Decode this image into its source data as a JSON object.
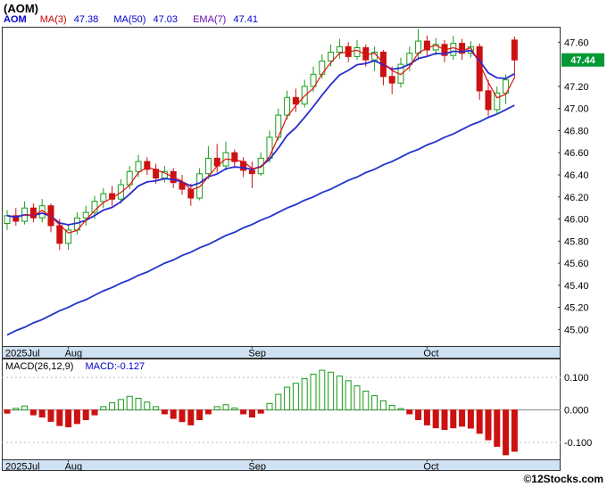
{
  "title": "(AOM)",
  "legend": {
    "symbol": "AOM",
    "symbol_color": "#0000cc",
    "items": [
      {
        "label": "MA(3)",
        "value": "47.38",
        "label_color": "#cc0000",
        "value_color": "#0000cc"
      },
      {
        "label": "MA(50)",
        "value": "47.03",
        "label_color": "#0000cc",
        "value_color": "#0000cc"
      },
      {
        "label": "EMA(7)",
        "value": "47.41",
        "label_color": "#6a0dad",
        "value_color": "#0000cc"
      }
    ]
  },
  "price_axis": {
    "ticks": [
      47.6,
      47.2,
      47.0,
      46.8,
      46.6,
      46.4,
      46.2,
      46.0,
      45.8,
      45.6,
      45.4,
      45.2,
      45.0
    ],
    "last_price": "47.44"
  },
  "x_axis": {
    "months": [
      {
        "label": "2025Jul",
        "index": 0
      },
      {
        "label": "Aug",
        "index": 7
      },
      {
        "label": "Sep",
        "index": 28
      },
      {
        "label": "Oct",
        "index": 48
      }
    ]
  },
  "macd_panel": {
    "label": "MACD(26,12,9)",
    "value_label": "MACD:-0.127",
    "value_color": "#0000cc",
    "axis_labels": [
      "0.100",
      "0.000",
      "-0.100"
    ],
    "axis_values": [
      0.1,
      0,
      -0.1
    ]
  },
  "footer": {
    "copyright": "©12Stocks.com"
  },
  "colors": {
    "up": "#1a9a1a",
    "down": "#cc1111",
    "ma3": "#e01010",
    "ema7": "#2a2ad0",
    "ma50": "#2233cc",
    "last_price_bg": "#009933",
    "last_price_text": "#ffffff",
    "band_bg": "#cfe2f3",
    "border": "#333333",
    "zero_line": "#888888",
    "grid_dotted": "#bbbbbb",
    "axis_text": "#000000"
  },
  "chart_data": {
    "type": "candlestick",
    "symbol": "AOM",
    "title": "(AOM)",
    "ylim": [
      44.85,
      47.74
    ],
    "x_tick_labels": [
      "2025Jul",
      "Aug",
      "Sep",
      "Oct"
    ],
    "candles": [
      [
        45.96,
        46.08,
        45.9,
        46.03
      ],
      [
        46.03,
        46.1,
        45.94,
        45.98
      ],
      [
        45.98,
        46.16,
        45.95,
        46.1
      ],
      [
        46.1,
        46.14,
        45.97,
        46.01
      ],
      [
        46.01,
        46.18,
        45.97,
        46.12
      ],
      [
        46.12,
        46.14,
        45.88,
        45.94
      ],
      [
        45.94,
        46.0,
        45.72,
        45.78
      ],
      [
        45.78,
        45.95,
        45.72,
        45.9
      ],
      [
        45.9,
        46.06,
        45.86,
        46.01
      ],
      [
        46.01,
        46.12,
        45.94,
        46.06
      ],
      [
        46.06,
        46.21,
        46.0,
        46.16
      ],
      [
        46.16,
        46.28,
        46.1,
        46.23
      ],
      [
        46.23,
        46.3,
        46.12,
        46.18
      ],
      [
        46.18,
        46.36,
        46.14,
        46.31
      ],
      [
        46.31,
        46.48,
        46.27,
        46.43
      ],
      [
        46.43,
        46.58,
        46.38,
        46.52
      ],
      [
        46.52,
        46.56,
        46.4,
        46.45
      ],
      [
        46.45,
        46.5,
        46.32,
        46.37
      ],
      [
        46.37,
        46.48,
        46.33,
        46.43
      ],
      [
        46.43,
        46.46,
        46.28,
        46.33
      ],
      [
        46.33,
        46.4,
        46.22,
        46.27
      ],
      [
        46.27,
        46.32,
        46.12,
        46.19
      ],
      [
        46.19,
        46.46,
        46.17,
        46.41
      ],
      [
        46.41,
        46.66,
        46.36,
        46.55
      ],
      [
        46.55,
        46.68,
        46.42,
        46.48
      ],
      [
        46.48,
        46.7,
        46.44,
        46.6
      ],
      [
        46.6,
        46.63,
        46.46,
        46.52
      ],
      [
        46.52,
        46.56,
        46.38,
        46.44
      ],
      [
        46.44,
        46.52,
        46.28,
        46.41
      ],
      [
        46.41,
        46.6,
        46.39,
        46.55
      ],
      [
        46.55,
        46.8,
        46.51,
        46.74
      ],
      [
        46.74,
        47.0,
        46.71,
        46.94
      ],
      [
        46.94,
        47.16,
        46.9,
        47.1
      ],
      [
        47.1,
        47.18,
        46.97,
        47.04
      ],
      [
        47.04,
        47.26,
        47.01,
        47.2
      ],
      [
        47.2,
        47.38,
        47.15,
        47.31
      ],
      [
        47.31,
        47.49,
        47.27,
        47.43
      ],
      [
        47.43,
        47.58,
        47.38,
        47.51
      ],
      [
        47.51,
        47.63,
        47.45,
        47.56
      ],
      [
        47.56,
        47.6,
        47.42,
        47.47
      ],
      [
        47.47,
        47.62,
        47.44,
        47.55
      ],
      [
        47.55,
        47.58,
        47.38,
        47.44
      ],
      [
        47.44,
        47.56,
        47.34,
        47.51
      ],
      [
        47.51,
        47.53,
        47.21,
        47.29
      ],
      [
        47.29,
        47.38,
        47.13,
        47.23
      ],
      [
        47.23,
        47.46,
        47.19,
        47.4
      ],
      [
        47.4,
        47.56,
        47.34,
        47.5
      ],
      [
        47.5,
        47.72,
        47.44,
        47.61
      ],
      [
        47.61,
        47.66,
        47.47,
        47.53
      ],
      [
        47.53,
        47.64,
        47.48,
        47.58
      ],
      [
        47.58,
        47.62,
        47.42,
        47.48
      ],
      [
        47.48,
        47.66,
        47.44,
        47.59
      ],
      [
        47.59,
        47.63,
        47.44,
        47.5
      ],
      [
        47.5,
        47.61,
        47.46,
        47.56
      ],
      [
        47.56,
        47.59,
        47.08,
        47.16
      ],
      [
        47.16,
        47.26,
        46.93,
        46.99
      ],
      [
        46.99,
        47.2,
        46.95,
        47.14
      ],
      [
        47.14,
        47.31,
        47.04,
        47.26
      ],
      [
        47.62,
        47.65,
        47.28,
        47.44
      ]
    ],
    "ma50": [
      44.95,
      44.99,
      45.02,
      45.06,
      45.09,
      45.13,
      45.17,
      45.2,
      45.24,
      45.27,
      45.31,
      45.35,
      45.38,
      45.42,
      45.45,
      45.49,
      45.52,
      45.56,
      45.6,
      45.63,
      45.67,
      45.7,
      45.74,
      45.77,
      45.81,
      45.85,
      45.88,
      45.92,
      45.95,
      45.99,
      46.02,
      46.06,
      46.1,
      46.13,
      46.17,
      46.2,
      46.24,
      46.27,
      46.31,
      46.35,
      46.38,
      46.42,
      46.45,
      46.49,
      46.52,
      46.56,
      46.6,
      46.63,
      46.67,
      46.7,
      46.74,
      46.77,
      46.81,
      46.85,
      46.88,
      46.92,
      46.95,
      46.99,
      47.03
    ],
    "macd": {
      "type": "bar",
      "ylim": [
        -0.152,
        0.158
      ],
      "values": [
        -0.01,
        0.005,
        0.012,
        -0.015,
        -0.022,
        -0.035,
        -0.048,
        -0.052,
        -0.042,
        -0.03,
        -0.015,
        0.01,
        0.022,
        0.032,
        0.042,
        0.036,
        0.024,
        0.01,
        -0.012,
        -0.026,
        -0.036,
        -0.046,
        -0.03,
        -0.012,
        0.01,
        0.016,
        0.006,
        -0.012,
        -0.022,
        -0.01,
        0.02,
        0.048,
        0.07,
        0.082,
        0.096,
        0.11,
        0.122,
        0.116,
        0.104,
        0.09,
        0.074,
        0.058,
        0.044,
        0.028,
        0.014,
        0.004,
        -0.012,
        -0.03,
        -0.046,
        -0.055,
        -0.06,
        -0.055,
        -0.05,
        -0.056,
        -0.072,
        -0.092,
        -0.112,
        -0.138,
        -0.127
      ]
    }
  }
}
